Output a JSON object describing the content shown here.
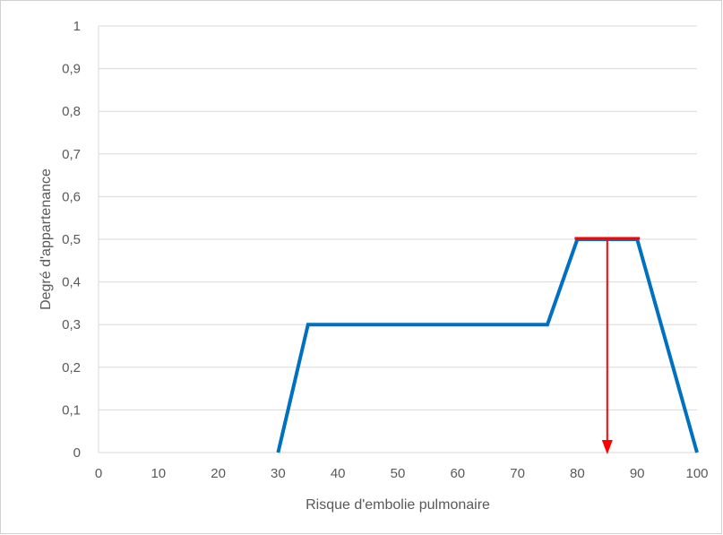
{
  "chart_data": {
    "type": "line",
    "title": "",
    "xlabel": "Risque d'embolie pulmonaire",
    "ylabel": "Degré d'appartenance",
    "xlim": [
      0,
      100
    ],
    "ylim": [
      0,
      1
    ],
    "x_ticks": [
      "0",
      "10",
      "20",
      "30",
      "40",
      "50",
      "60",
      "70",
      "80",
      "90",
      "100"
    ],
    "y_ticks": [
      "0",
      "0,1",
      "0,2",
      "0,3",
      "0,4",
      "0,5",
      "0,6",
      "0,7",
      "0,8",
      "0,9",
      "1"
    ],
    "grid": true,
    "legend": "none",
    "series": [
      {
        "x": [
          30,
          35,
          75,
          80,
          90,
          100
        ],
        "y": [
          0,
          0.3,
          0.3,
          0.5,
          0.5,
          0
        ],
        "color": "#0070c0"
      }
    ],
    "annotations": [
      {
        "type": "horizontal-line",
        "x_start": 80,
        "x_end": 90,
        "y": 0.5,
        "color": "#ff0000"
      },
      {
        "type": "arrow",
        "x": 85,
        "y_start": 0.5,
        "y_end": 0,
        "color": "#ff0000"
      }
    ]
  }
}
